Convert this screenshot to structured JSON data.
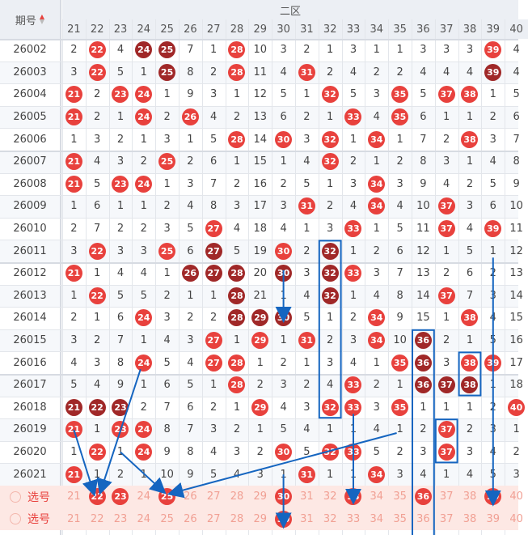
{
  "header": {
    "issue_label": "期号",
    "sort_icon": "sort-arrows-icon",
    "zone_label": "二区"
  },
  "columns": [
    "21",
    "22",
    "23",
    "24",
    "25",
    "26",
    "27",
    "28",
    "29",
    "30",
    "31",
    "32",
    "33",
    "34",
    "35",
    "36",
    "37",
    "38",
    "39",
    "40"
  ],
  "rows": [
    {
      "issue": "26002",
      "cells": [
        "2",
        "22",
        "4",
        "24",
        "25",
        "7",
        "1",
        "28",
        "10",
        "3",
        "2",
        "1",
        "3",
        "1",
        "1",
        "3",
        "3",
        "3",
        "39",
        "4"
      ]
    },
    {
      "issue": "26003",
      "cells": [
        "3",
        "22",
        "5",
        "1",
        "25",
        "8",
        "2",
        "28",
        "11",
        "4",
        "31",
        "2",
        "4",
        "2",
        "2",
        "4",
        "4",
        "4",
        "39",
        "4"
      ]
    },
    {
      "issue": "26004",
      "cells": [
        "21",
        "2",
        "23",
        "24",
        "1",
        "9",
        "3",
        "1",
        "12",
        "5",
        "1",
        "32",
        "5",
        "3",
        "35",
        "5",
        "37",
        "38",
        "1",
        "5"
      ]
    },
    {
      "issue": "26005",
      "cells": [
        "21",
        "2",
        "1",
        "24",
        "2",
        "26",
        "4",
        "2",
        "13",
        "6",
        "2",
        "1",
        "33",
        "4",
        "35",
        "6",
        "1",
        "1",
        "2",
        "6"
      ]
    },
    {
      "issue": "26006",
      "cells": [
        "1",
        "3",
        "2",
        "1",
        "3",
        "1",
        "5",
        "28",
        "14",
        "30",
        "3",
        "32",
        "1",
        "34",
        "1",
        "7",
        "2",
        "38",
        "3",
        "7"
      ]
    },
    {
      "issue": "26007",
      "cells": [
        "21",
        "4",
        "3",
        "2",
        "25",
        "2",
        "6",
        "1",
        "15",
        "1",
        "4",
        "32",
        "2",
        "1",
        "2",
        "8",
        "3",
        "1",
        "4",
        "8"
      ]
    },
    {
      "issue": "26008",
      "cells": [
        "21",
        "5",
        "23",
        "24",
        "1",
        "3",
        "7",
        "2",
        "16",
        "2",
        "5",
        "1",
        "3",
        "34",
        "3",
        "9",
        "4",
        "2",
        "5",
        "9"
      ]
    },
    {
      "issue": "26009",
      "cells": [
        "1",
        "6",
        "1",
        "1",
        "2",
        "4",
        "8",
        "3",
        "17",
        "3",
        "31",
        "2",
        "4",
        "34",
        "4",
        "10",
        "37",
        "3",
        "6",
        "10"
      ]
    },
    {
      "issue": "26010",
      "cells": [
        "2",
        "7",
        "2",
        "2",
        "3",
        "5",
        "27",
        "4",
        "18",
        "4",
        "1",
        "3",
        "33",
        "1",
        "5",
        "11",
        "37",
        "4",
        "39",
        "11"
      ]
    },
    {
      "issue": "26011",
      "cells": [
        "3",
        "22",
        "3",
        "3",
        "25",
        "6",
        "27",
        "5",
        "19",
        "30",
        "2",
        "32",
        "1",
        "2",
        "6",
        "12",
        "1",
        "5",
        "1",
        "12"
      ]
    },
    {
      "issue": "26012",
      "cells": [
        "21",
        "1",
        "4",
        "4",
        "1",
        "26",
        "27",
        "28",
        "20",
        "30",
        "3",
        "32",
        "33",
        "3",
        "7",
        "13",
        "2",
        "6",
        "2",
        "13"
      ]
    },
    {
      "issue": "26013",
      "cells": [
        "1",
        "22",
        "5",
        "5",
        "2",
        "1",
        "1",
        "28",
        "21",
        "1",
        "4",
        "32",
        "1",
        "4",
        "8",
        "14",
        "37",
        "7",
        "3",
        "14"
      ]
    },
    {
      "issue": "26014",
      "cells": [
        "2",
        "1",
        "6",
        "24",
        "3",
        "2",
        "2",
        "28",
        "29",
        "30",
        "5",
        "1",
        "2",
        "34",
        "9",
        "15",
        "1",
        "38",
        "4",
        "15"
      ]
    },
    {
      "issue": "26015",
      "cells": [
        "3",
        "2",
        "7",
        "1",
        "4",
        "3",
        "27",
        "1",
        "29",
        "1",
        "31",
        "2",
        "3",
        "34",
        "10",
        "36",
        "2",
        "1",
        "5",
        "16"
      ]
    },
    {
      "issue": "26016",
      "cells": [
        "4",
        "3",
        "8",
        "24",
        "5",
        "4",
        "27",
        "28",
        "1",
        "2",
        "1",
        "3",
        "4",
        "1",
        "35",
        "36",
        "3",
        "38",
        "39",
        "17"
      ]
    },
    {
      "issue": "26017",
      "cells": [
        "5",
        "4",
        "9",
        "1",
        "6",
        "5",
        "1",
        "28",
        "2",
        "3",
        "2",
        "4",
        "33",
        "2",
        "1",
        "36",
        "37",
        "38",
        "1",
        "18"
      ]
    },
    {
      "issue": "26018",
      "cells": [
        "21",
        "22",
        "23",
        "2",
        "7",
        "6",
        "2",
        "1",
        "29",
        "4",
        "3",
        "32",
        "33",
        "3",
        "35",
        "1",
        "1",
        "1",
        "2",
        "40"
      ]
    },
    {
      "issue": "26019",
      "cells": [
        "21",
        "1",
        "23",
        "24",
        "8",
        "7",
        "3",
        "2",
        "1",
        "5",
        "4",
        "1",
        "1",
        "4",
        "1",
        "2",
        "37",
        "2",
        "3",
        "1"
      ]
    },
    {
      "issue": "26020",
      "cells": [
        "1",
        "22",
        "1",
        "24",
        "9",
        "8",
        "4",
        "3",
        "2",
        "30",
        "5",
        "32",
        "33",
        "5",
        "2",
        "3",
        "37",
        "3",
        "4",
        "2"
      ]
    },
    {
      "issue": "26021",
      "cells": [
        "21",
        "1",
        "2",
        "1",
        "10",
        "9",
        "5",
        "4",
        "3",
        "1",
        "31",
        "1",
        "1",
        "34",
        "3",
        "4",
        "1",
        "4",
        "5",
        "3"
      ]
    }
  ],
  "dark_balls": [
    {
      "issue": "26002",
      "values": [
        "24",
        "25"
      ]
    },
    {
      "issue": "26003",
      "values": [
        "25",
        "39"
      ]
    },
    {
      "issue": "26011",
      "values": [
        "27",
        "32"
      ]
    },
    {
      "issue": "26012",
      "values": [
        "26",
        "27",
        "28",
        "30",
        "32"
      ]
    },
    {
      "issue": "26013",
      "values": [
        "28",
        "32"
      ]
    },
    {
      "issue": "26014",
      "values": [
        "28",
        "29",
        "30"
      ]
    },
    {
      "issue": "26015",
      "values": [
        "36"
      ]
    },
    {
      "issue": "26016",
      "values": [
        "36"
      ]
    },
    {
      "issue": "26017",
      "values": [
        "36",
        "37",
        "38"
      ]
    },
    {
      "issue": "26018",
      "values": [
        "21",
        "22",
        "23"
      ]
    }
  ],
  "select_rows": [
    {
      "label": "选号",
      "selected": [
        "22",
        "23",
        "25",
        "30",
        "33",
        "36",
        "39"
      ]
    },
    {
      "label": "选号",
      "selected": [
        "30"
      ]
    }
  ]
}
